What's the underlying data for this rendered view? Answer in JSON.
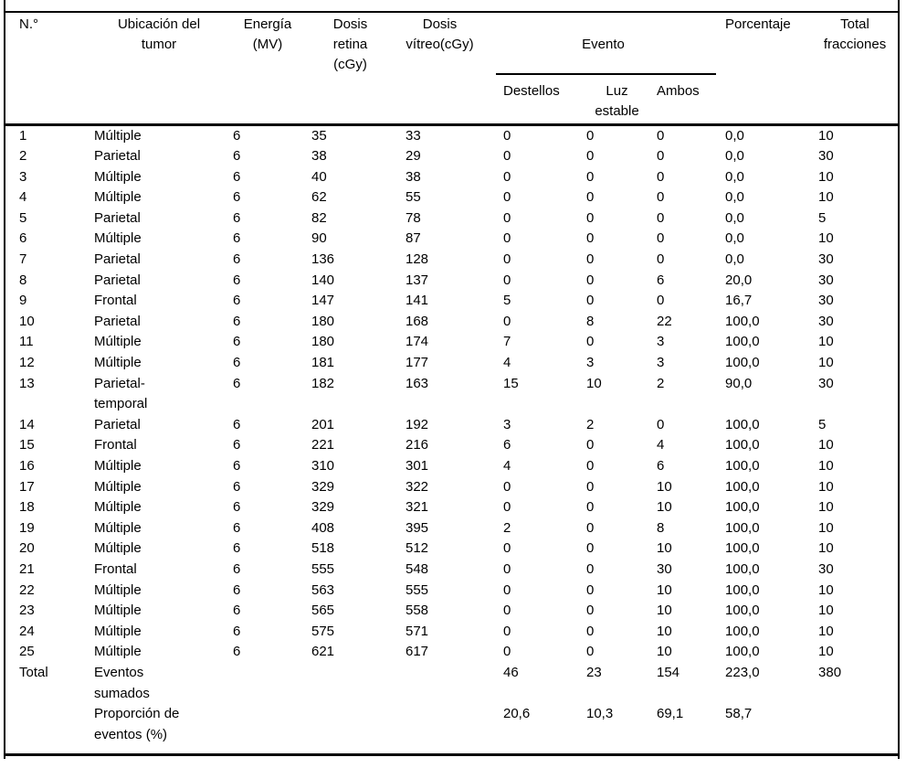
{
  "page": {
    "background_color": "#ffffff",
    "text_color": "#000000",
    "rule_color": "#000000"
  },
  "table": {
    "column_ids": [
      "numero",
      "ubicacion",
      "energia",
      "dosis-retina",
      "dosis-vitreo",
      "destellos",
      "luz-estable",
      "ambos",
      "porcentaje",
      "total-fracciones"
    ],
    "headers": {
      "numero": "N.°",
      "ubicacion": "Ubicación del\ntumor",
      "energia": "Energía\n(MV)",
      "dosis_retina": "Dosis\nretina\n(cGy)",
      "dosis_vitreo": "Dosis\nvítreo(cGy)",
      "evento": "Evento",
      "destellos": "Destellos",
      "luz_estable": "Luz\nestable",
      "ambos": "Ambos",
      "porcentaje": "Porcentaje",
      "total_fracciones": "Total\nfracciones"
    },
    "rows": [
      [
        "1",
        "Múltiple",
        "6",
        "35",
        "33",
        "0",
        "0",
        "0",
        "0,0",
        "10"
      ],
      [
        "2",
        "Parietal",
        "6",
        "38",
        "29",
        "0",
        "0",
        "0",
        "0,0",
        "30"
      ],
      [
        "3",
        "Múltiple",
        "6",
        "40",
        "38",
        "0",
        "0",
        "0",
        "0,0",
        "10"
      ],
      [
        "4",
        "Múltiple",
        "6",
        "62",
        "55",
        "0",
        "0",
        "0",
        "0,0",
        "10"
      ],
      [
        "5",
        "Parietal",
        "6",
        "82",
        "78",
        "0",
        "0",
        "0",
        "0,0",
        "5"
      ],
      [
        "6",
        "Múltiple",
        "6",
        "90",
        "87",
        "0",
        "0",
        "0",
        "0,0",
        "10"
      ],
      [
        "7",
        "Parietal",
        "6",
        "136",
        "128",
        "0",
        "0",
        "0",
        "0,0",
        "30"
      ],
      [
        "8",
        "Parietal",
        "6",
        "140",
        "137",
        "0",
        "0",
        "6",
        "20,0",
        "30"
      ],
      [
        "9",
        "Frontal",
        "6",
        "147",
        "141",
        "5",
        "0",
        "0",
        "16,7",
        "30"
      ],
      [
        "10",
        "Parietal",
        "6",
        "180",
        "168",
        "0",
        "8",
        "22",
        "100,0",
        "30"
      ],
      [
        "11",
        "Múltiple",
        "6",
        "180",
        "174",
        "7",
        "0",
        "3",
        "100,0",
        "10"
      ],
      [
        "12",
        "Múltiple",
        "6",
        "181",
        "177",
        "4",
        "3",
        "3",
        "100,0",
        "10"
      ],
      [
        "13",
        "Parietal-\ntemporal",
        "6",
        "182",
        "163",
        "15",
        "10",
        "2",
        "90,0",
        "30"
      ],
      [
        "14",
        "Parietal",
        "6",
        "201",
        "192",
        "3",
        "2",
        "0",
        "100,0",
        "5"
      ],
      [
        "15",
        "Frontal",
        "6",
        "221",
        "216",
        "6",
        "0",
        "4",
        "100,0",
        "10"
      ],
      [
        "16",
        "Múltiple",
        "6",
        "310",
        "301",
        "4",
        "0",
        "6",
        "100,0",
        "10"
      ],
      [
        "17",
        "Múltiple",
        "6",
        "329",
        "322",
        "0",
        "0",
        "10",
        "100,0",
        "10"
      ],
      [
        "18",
        "Múltiple",
        "6",
        "329",
        "321",
        "0",
        "0",
        "10",
        "100,0",
        "10"
      ],
      [
        "19",
        "Múltiple",
        "6",
        "408",
        "395",
        "2",
        "0",
        "8",
        "100,0",
        "10"
      ],
      [
        "20",
        "Múltiple",
        "6",
        "518",
        "512",
        "0",
        "0",
        "10",
        "100,0",
        "10"
      ],
      [
        "21",
        "Frontal",
        "6",
        "555",
        "548",
        "0",
        "0",
        "30",
        "100,0",
        "30"
      ],
      [
        "22",
        "Múltiple",
        "6",
        "563",
        "555",
        "0",
        "0",
        "10",
        "100,0",
        "10"
      ],
      [
        "23",
        "Múltiple",
        "6",
        "565",
        "558",
        "0",
        "0",
        "10",
        "100,0",
        "10"
      ],
      [
        "24",
        "Múltiple",
        "6",
        "575",
        "571",
        "0",
        "0",
        "10",
        "100,0",
        "10"
      ],
      [
        "25",
        "Múltiple",
        "6",
        "621",
        "617",
        "0",
        "0",
        "10",
        "100,0",
        "10"
      ],
      [
        "Total",
        "Eventos\nsumados",
        "",
        "",
        "",
        "46",
        "23",
        "154",
        "223,0",
        "380"
      ],
      [
        "",
        "Proporción de\neventos (%)",
        "",
        "",
        "",
        "20,6",
        "10,3",
        "69,1",
        "58,7",
        ""
      ]
    ]
  }
}
